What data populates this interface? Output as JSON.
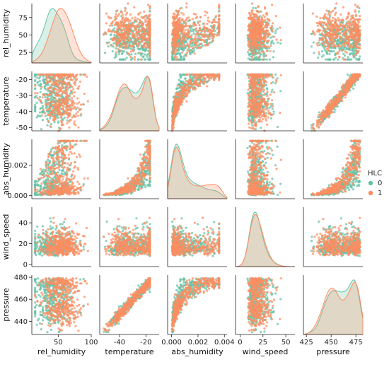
{
  "chart_data": {
    "type": "scatter",
    "kind": "pairplot",
    "hue_label": "HLC",
    "hue_levels": [
      {
        "name": "0",
        "color": "#66c2a5"
      },
      {
        "name": "1",
        "color": "#fc8d62"
      }
    ],
    "variables": [
      {
        "name": "rel_humidity",
        "range": [
          10,
          100
        ],
        "ticks": [
          50,
          100
        ],
        "ytick_range": [
          10,
          95
        ],
        "yticks": [
          25,
          50,
          75
        ],
        "dist": "normal",
        "mean0": 42,
        "mean1": 55,
        "sd": 15,
        "clip": [
          15,
          95
        ]
      },
      {
        "name": "temperature",
        "range": [
          -55,
          -10
        ],
        "ticks": [
          -40,
          -20
        ],
        "ytick_range": [
          -52,
          -15
        ],
        "yticks": [
          -50,
          -40,
          -30,
          -20
        ],
        "dist": "bimodal",
        "peaks": [
          -37,
          -20
        ],
        "clip": [
          -52,
          -17
        ]
      },
      {
        "name": "abs_humidity",
        "range": [
          -0.0003,
          0.0042
        ],
        "ticks": [
          0.0,
          0.002,
          0.004
        ],
        "tick_labels": [
          "0.000",
          "0.002",
          "0.004"
        ],
        "ytick_range": [
          -0.0002,
          0.0037
        ],
        "yticks": [
          0.0,
          0.002
        ],
        "ytick_labels": [
          "0.000",
          "0.002"
        ],
        "dist": "derived"
      },
      {
        "name": "wind_speed",
        "range": [
          -5,
          60
        ],
        "ticks": [
          0,
          25,
          50
        ],
        "ytick_range": [
          -2,
          55
        ],
        "yticks": [
          0,
          20,
          40
        ],
        "dist": "gamma",
        "clip": [
          0,
          55
        ]
      },
      {
        "name": "pressure",
        "range": [
          422,
          482
        ],
        "ticks": [
          425,
          450,
          475
        ],
        "ytick_range": [
          428,
          482
        ],
        "yticks": [
          440,
          460,
          480
        ],
        "dist": "derived"
      }
    ],
    "diagonal": "kde",
    "offdiagonal": "scatter",
    "points_per_group": 420,
    "legend": {
      "title": "HLC",
      "placement": "right"
    }
  }
}
